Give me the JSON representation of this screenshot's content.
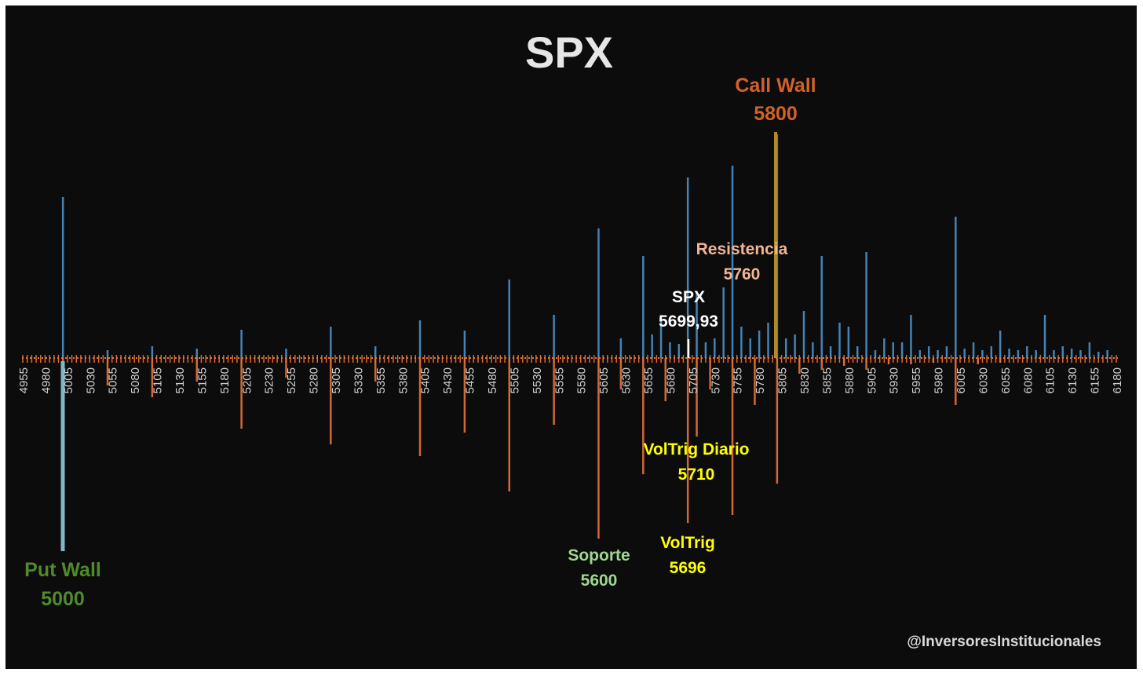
{
  "chart_data": {
    "type": "bar",
    "title": "SPX",
    "watermark": "@InversoresInstitucionales",
    "x_range": [
      4955,
      6180
    ],
    "tick_labels": [
      "4955",
      "4980",
      "5005",
      "5030",
      "5055",
      "5080",
      "5105",
      "5130",
      "5155",
      "5180",
      "5205",
      "5230",
      "5255",
      "5280",
      "5305",
      "5330",
      "5355",
      "5380",
      "5405",
      "5430",
      "5455",
      "5480",
      "5505",
      "5530",
      "5555",
      "5580",
      "5605",
      "5630",
      "5655",
      "5680",
      "5705",
      "5730",
      "5755",
      "5780",
      "5805",
      "5830",
      "5855",
      "5880",
      "5905",
      "5930",
      "5955",
      "5980",
      "6005",
      "6030",
      "6055",
      "6080",
      "6105",
      "6130",
      "6155",
      "6180"
    ],
    "series": [
      {
        "name": "",
        "color": "#4a90c8",
        "x": [
          5000,
          5050,
          5100,
          5150,
          5200,
          5250,
          5300,
          5350,
          5400,
          5450,
          5500,
          5550,
          5600,
          5625,
          5650,
          5660,
          5670,
          5680,
          5690,
          5700,
          5710,
          5720,
          5730,
          5740,
          5750,
          5760,
          5770,
          5780,
          5790,
          5800,
          5810,
          5820,
          5830,
          5840,
          5850,
          5860,
          5870,
          5880,
          5890,
          5900,
          5910,
          5920,
          5930,
          5940,
          5950,
          5960,
          5970,
          5980,
          5990,
          6000,
          6010,
          6020,
          6030,
          6040,
          6050,
          6060,
          6070,
          6080,
          6090,
          6100,
          6110,
          6120,
          6130,
          6140,
          6150,
          6160,
          6170
        ],
        "values": [
          205,
          10,
          15,
          12,
          36,
          12,
          40,
          15,
          48,
          35,
          100,
          55,
          165,
          25,
          130,
          30,
          50,
          20,
          18,
          230,
          85,
          20,
          25,
          90,
          245,
          40,
          25,
          35,
          45,
          285,
          25,
          30,
          60,
          20,
          130,
          15,
          45,
          40,
          15,
          135,
          10,
          25,
          20,
          20,
          55,
          10,
          15,
          10,
          15,
          180,
          12,
          20,
          10,
          15,
          35,
          12,
          10,
          15,
          10,
          55,
          10,
          15,
          12,
          10,
          20,
          8,
          10
        ]
      },
      {
        "name": "",
        "color": "#e8733a",
        "x": [
          5000,
          5050,
          5100,
          5150,
          5200,
          5250,
          5300,
          5350,
          5400,
          5450,
          5500,
          5550,
          5600,
          5625,
          5650,
          5675,
          5700,
          5710,
          5725,
          5750,
          5775,
          5800,
          5825,
          5850,
          5875,
          5900,
          5925,
          5950,
          5975,
          6000,
          6025,
          6050
        ],
        "values": [
          -245,
          -35,
          -50,
          -30,
          -90,
          -25,
          -110,
          -30,
          -125,
          -95,
          -170,
          -85,
          -230,
          -40,
          -148,
          -55,
          -210,
          -100,
          -40,
          -200,
          -60,
          -160,
          -20,
          -15,
          -10,
          -15,
          -8,
          -8,
          -6,
          -60,
          -8,
          -6
        ]
      }
    ],
    "annotations": [
      {
        "title": "Call Wall",
        "value": "5800",
        "color": "#d2622a"
      },
      {
        "title": "Resistencia",
        "value": "5760",
        "color": "#f2b594"
      },
      {
        "title": "SPX",
        "value": "5699,93",
        "color": "#ffffff"
      },
      {
        "title": "VolTrig Diario",
        "value": "5710",
        "color": "#ffff00"
      },
      {
        "title": "VolTrig",
        "value": "5696",
        "color": "#ffff00"
      },
      {
        "title": "Soporte",
        "value": "5600",
        "color": "#9fd78f"
      },
      {
        "title": "Put Wall",
        "value": "5000",
        "color": "#4f8a2b"
      }
    ]
  }
}
